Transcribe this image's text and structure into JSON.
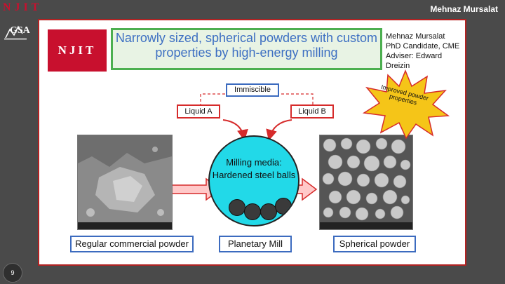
{
  "header": {
    "logo_text": "NJIT",
    "presenter": "Mehnaz Mursalat",
    "side_logo_text": "GSA"
  },
  "slide_number": "9",
  "slide": {
    "logo_text": "NJIT",
    "title": "Narrowly sized, spherical powders with custom properties by high-energy milling",
    "author_lines": [
      "Mehnaz Mursalat",
      "PhD Candidate, CME",
      "Adviser: Edward",
      "Dreizin"
    ],
    "immiscible_label": "Immiscible",
    "liquid_a": "Liquid A",
    "liquid_b": "Liquid B",
    "mill_text_line1": "Milling media:",
    "mill_text_line2": "Hardened steel balls",
    "starburst_text": "Improved powder properties",
    "caption_left": "Regular commercial powder",
    "caption_center": "Planetary Mill",
    "caption_right": "Spherical powder"
  },
  "colors": {
    "accent_red": "#c8102e",
    "slide_border": "#b32222",
    "title_border": "#4caf50",
    "title_text": "#3d6fc2",
    "caption_border": "#3c6bbf",
    "mill_fill": "#22d9e8",
    "star_fill": "#f5c518",
    "arrow_fill": "#ffc9c9"
  }
}
